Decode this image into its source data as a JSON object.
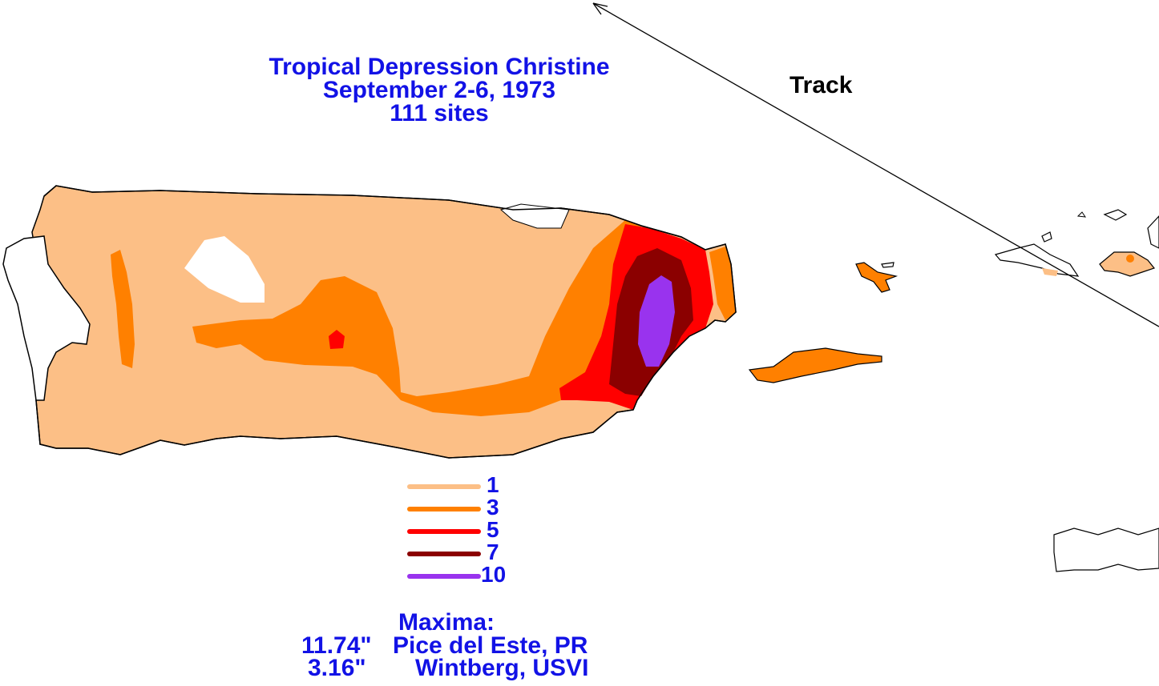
{
  "title": {
    "line1": "Tropical Depression Christine",
    "line2": "September 2-6, 1973",
    "line3": "111 sites"
  },
  "track_label": "Track",
  "legend": [
    {
      "value": "1",
      "color": "#fcbf86"
    },
    {
      "value": "3",
      "color": "#ff8000"
    },
    {
      "value": "5",
      "color": "#ff0000"
    },
    {
      "value": "7",
      "color": "#8b0000"
    },
    {
      "value": "10",
      "color": "#9933ee"
    }
  ],
  "maxima": {
    "heading": "Maxima:",
    "entries": [
      {
        "amount": "11.74\"",
        "site": "Pice del Este, PR"
      },
      {
        "amount": "3.16\"",
        "site": "Wintberg, USVI"
      }
    ]
  }
}
